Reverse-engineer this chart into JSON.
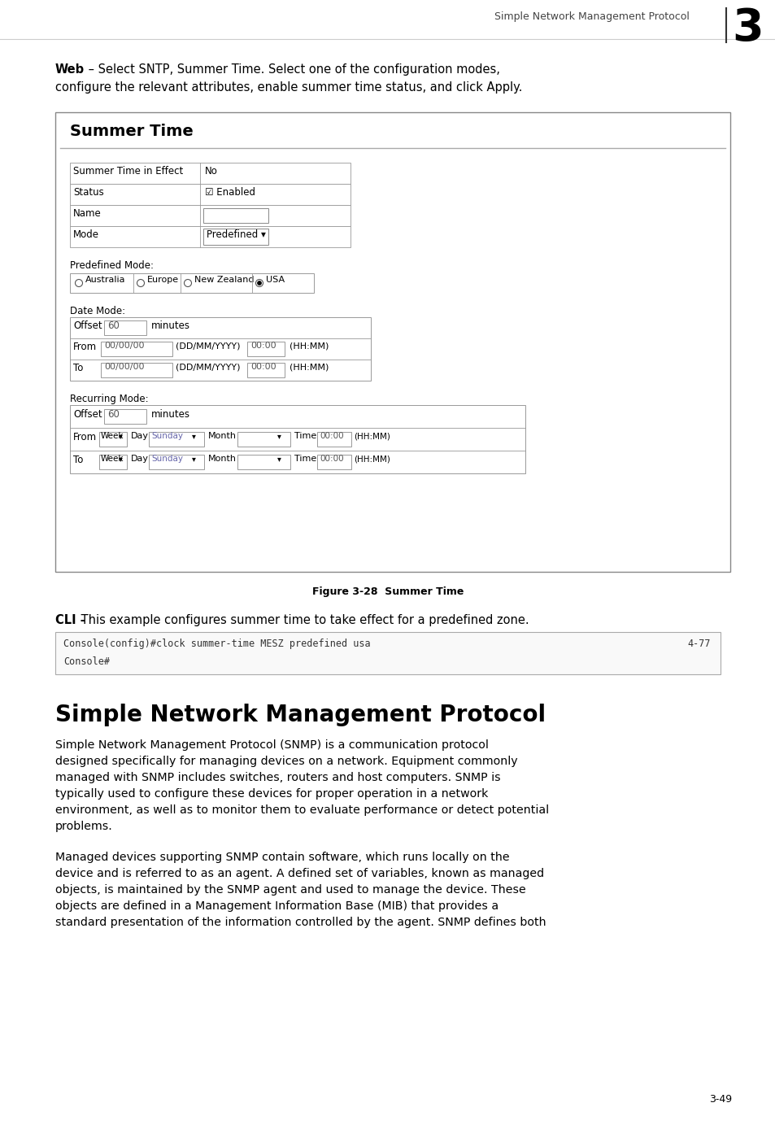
{
  "page_bg": "#ffffff",
  "header_text": "Simple Network Management Protocol",
  "chapter_num": "3",
  "web_line1": "Web – Select SNTP, Summer Time. Select one of the configuration modes,",
  "web_line2": "configure the relevant attributes, enable summer time status, and click Apply.",
  "figure_box_title": "Summer Time",
  "table_rows": [
    {
      "label": "Summer Time in Effect",
      "value": "No",
      "has_input": false,
      "is_dropdown": false
    },
    {
      "label": "Status",
      "value": "☑ Enabled",
      "has_input": false,
      "is_dropdown": false
    },
    {
      "label": "Name",
      "value": "",
      "has_input": true,
      "is_dropdown": false
    },
    {
      "label": "Mode",
      "value": "Predefined ▾",
      "has_input": false,
      "is_dropdown": true
    }
  ],
  "predefined_label": "Predefined Mode:",
  "predefined_options": [
    "Australia",
    "Europe",
    "New Zealand",
    "USA"
  ],
  "predefined_selected": 3,
  "date_mode_label": "Date Mode:",
  "recurring_label": "Recurring Mode:",
  "figure_caption": "Figure 3-28  Summer Time",
  "cli_bold": "CLI -",
  "cli_text": " This example configures summer time to take effect for a predefined zone.",
  "code_line1": "Console(config)#clock summer-time MESZ predefined usa",
  "code_ref": "4-77",
  "code_line2": "Console#",
  "section_title": "Simple Network Management Protocol",
  "section_body1_lines": [
    "Simple Network Management Protocol (SNMP) is a communication protocol",
    "designed specifically for managing devices on a network. Equipment commonly",
    "managed with SNMP includes switches, routers and host computers. SNMP is",
    "typically used to configure these devices for proper operation in a network",
    "environment, as well as to monitor them to evaluate performance or detect potential",
    "problems."
  ],
  "section_body2_lines": [
    "Managed devices supporting SNMP contain software, which runs locally on the",
    "device and is referred to as an agent. A defined set of variables, known as managed",
    "objects, is maintained by the SNMP agent and used to manage the device. These",
    "objects are defined in a Management Information Base (MIB) that provides a",
    "standard presentation of the information controlled by the agent. SNMP defines both"
  ],
  "page_number": "3-49"
}
